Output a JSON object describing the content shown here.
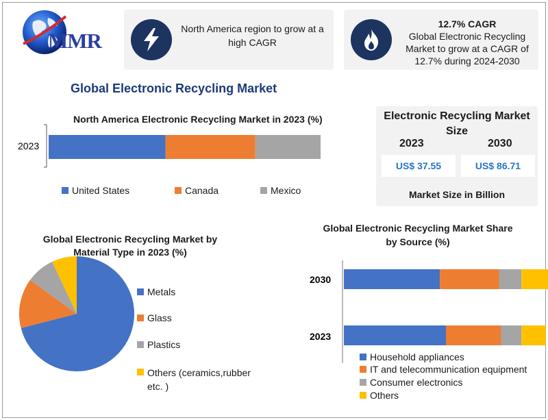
{
  "colors": {
    "blue": "#4472C4",
    "orange": "#ED7D31",
    "gray": "#A5A5A5",
    "yellow": "#FFC000",
    "navy": "#1d3460",
    "title_blue": "#1d3a78",
    "value_blue": "#2575c7"
  },
  "header": {
    "logo_text": "MMR",
    "card1": {
      "icon": "lightning-bolt-icon",
      "text": "North America region to grow at a high CAGR"
    },
    "card2": {
      "icon": "flame-icon",
      "headline": "12.7% CAGR",
      "text": "Global Electronic Recycling Market to grow at a CAGR of 12.7% during 2024-2030"
    }
  },
  "main_title": "Global Electronic Recycling Market",
  "market_size": {
    "title": "Electronic Recycling Market Size",
    "years": [
      "2023",
      "2030"
    ],
    "values": [
      "US$ 37.55",
      "US$ 86.71"
    ],
    "footer": "Market Size in Billion"
  },
  "chart_data": [
    {
      "type": "bar",
      "orientation": "horizontal",
      "stacked": true,
      "title": "North America Electronic Recycling Market in 2023 (%)",
      "categories": [
        "2023"
      ],
      "series": [
        {
          "name": "United States",
          "values": [
            43
          ],
          "color": "#4472C4"
        },
        {
          "name": "Canada",
          "values": [
            33
          ],
          "color": "#ED7D31"
        },
        {
          "name": "Mexico",
          "values": [
            24
          ],
          "color": "#A5A5A5"
        }
      ],
      "xlim": [
        0,
        100
      ],
      "legend": "bottom"
    },
    {
      "type": "pie",
      "title": "Global Electronic Recycling Market by Material Type in 2023 (%)",
      "labels": [
        "Metals",
        "Glass",
        "Plastics",
        "Others (ceramics,rubber etc. )"
      ],
      "values": [
        71,
        14,
        8,
        7
      ],
      "colors": [
        "#4472C4",
        "#ED7D31",
        "#A5A5A5",
        "#FFC000"
      ],
      "legend": "right"
    },
    {
      "type": "bar",
      "orientation": "horizontal",
      "stacked": true,
      "title": "Global Electronic Recycling Market Share by Source (%)",
      "categories": [
        "2030",
        "2023"
      ],
      "series": [
        {
          "name": "Household appliances",
          "values": [
            47,
            50
          ],
          "color": "#4472C4"
        },
        {
          "name": "IT and telecommunication equipment",
          "values": [
            29,
            27
          ],
          "color": "#ED7D31"
        },
        {
          "name": "Consumer electronics",
          "values": [
            11,
            10
          ],
          "color": "#A5A5A5"
        },
        {
          "name": "Others",
          "values": [
            13,
            12
          ],
          "color": "#FFC000"
        }
      ],
      "xlim": [
        0,
        100
      ],
      "legend": "bottom"
    }
  ]
}
